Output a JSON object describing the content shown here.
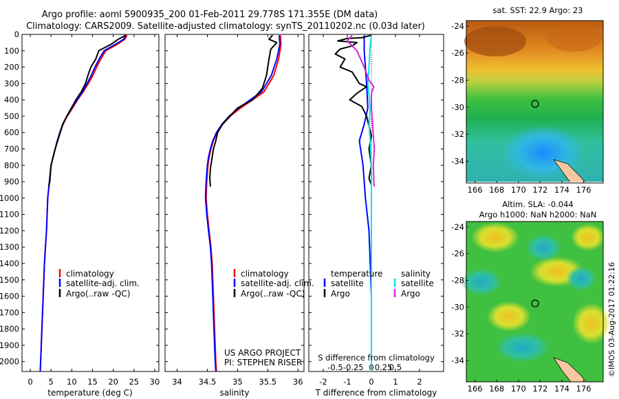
{
  "header": {
    "line1": "Argo profile: aoml 5900935_200 01-Feb-2011 29.778S 171.355E (DM data)",
    "line2": "Climatology: CARS2009. Satellite-adjusted climatology: synTS_20110202.nc (0.03d later)"
  },
  "depth_ticks": [
    "0",
    "100",
    "200",
    "300",
    "400",
    "500",
    "600",
    "700",
    "800",
    "900",
    "1000",
    "1100",
    "1200",
    "1300",
    "1400",
    "1500",
    "1600",
    "1700",
    "1800",
    "1900",
    "2000"
  ],
  "colors": {
    "climatology": "#ff0000",
    "satellite": "#0000ff",
    "argo": "#000000",
    "sat_salinity": "#00e5e5",
    "argo_salinity": "#e020e0"
  },
  "chart_data": [
    {
      "type": "line",
      "id": "temperature",
      "xlabel": "temperature (deg C)",
      "xlim": [
        -2,
        31
      ],
      "ylim": [
        0,
        2060
      ],
      "y_reversed": true,
      "xticks": [
        0,
        5,
        10,
        15,
        20,
        25,
        30
      ],
      "xtick_labels": [
        "0",
        "5",
        "10",
        "15",
        "20",
        "25",
        "30"
      ],
      "legend": [
        "climatology",
        "satellite-adj. clim.",
        "Argo(..raw -QC)"
      ],
      "series": [
        {
          "name": "climatology",
          "color": "#ff0000",
          "points": [
            [
              23.3,
              5
            ],
            [
              22.8,
              30
            ],
            [
              21.0,
              60
            ],
            [
              18.2,
              100
            ],
            [
              17.0,
              150
            ],
            [
              16.0,
              200
            ],
            [
              15.1,
              250
            ],
            [
              14.0,
              300
            ],
            [
              12.8,
              350
            ],
            [
              11.4,
              400
            ],
            [
              10.2,
              450
            ],
            [
              8.9,
              500
            ],
            [
              7.9,
              550
            ],
            [
              7.2,
              600
            ],
            [
              6.5,
              650
            ],
            [
              6.0,
              700
            ],
            [
              5.5,
              750
            ],
            [
              5.0,
              800
            ],
            [
              4.6,
              900
            ],
            [
              4.2,
              1000
            ],
            [
              3.9,
              1200
            ],
            [
              3.4,
              1400
            ],
            [
              3.1,
              1600
            ],
            [
              2.8,
              1800
            ],
            [
              2.5,
              2000
            ],
            [
              2.4,
              2060
            ]
          ]
        },
        {
          "name": "satellite-adj. clim.",
          "color": "#0000ff",
          "points": [
            [
              23.0,
              5
            ],
            [
              22.5,
              30
            ],
            [
              20.5,
              60
            ],
            [
              17.8,
              100
            ],
            [
              16.6,
              150
            ],
            [
              15.6,
              200
            ],
            [
              14.7,
              250
            ],
            [
              13.7,
              300
            ],
            [
              12.6,
              350
            ],
            [
              11.3,
              400
            ],
            [
              10.0,
              450
            ],
            [
              8.8,
              500
            ],
            [
              7.8,
              550
            ],
            [
              7.1,
              600
            ],
            [
              6.5,
              650
            ],
            [
              6.0,
              700
            ],
            [
              5.5,
              750
            ],
            [
              5.0,
              800
            ],
            [
              4.6,
              900
            ],
            [
              4.2,
              1000
            ],
            [
              3.9,
              1200
            ],
            [
              3.4,
              1400
            ],
            [
              3.1,
              1600
            ],
            [
              2.8,
              1800
            ],
            [
              2.5,
              2000
            ],
            [
              2.4,
              2060
            ]
          ]
        },
        {
          "name": "Argo(..raw -QC)",
          "color": "#000000",
          "points": [
            [
              23.0,
              5
            ],
            [
              21.2,
              30
            ],
            [
              19.5,
              60
            ],
            [
              16.5,
              100
            ],
            [
              15.8,
              150
            ],
            [
              14.6,
              200
            ],
            [
              13.9,
              250
            ],
            [
              13.3,
              300
            ],
            [
              12.3,
              350
            ],
            [
              11.0,
              400
            ],
            [
              9.9,
              450
            ],
            [
              8.8,
              500
            ],
            [
              7.8,
              550
            ],
            [
              7.2,
              600
            ],
            [
              6.6,
              650
            ],
            [
              6.0,
              700
            ],
            [
              5.5,
              750
            ],
            [
              5.0,
              800
            ],
            [
              4.7,
              900
            ],
            [
              4.4,
              930
            ]
          ]
        }
      ]
    },
    {
      "type": "line",
      "id": "salinity",
      "xlabel": "salinity",
      "xlim": [
        33.8,
        36.1
      ],
      "ylim": [
        0,
        2060
      ],
      "y_reversed": true,
      "xticks": [
        34,
        34.5,
        35,
        35.5,
        36
      ],
      "xtick_labels": [
        "34",
        "34.5",
        "35",
        "35.5",
        "36"
      ],
      "legend": [
        "climatology",
        "satellite-adj. clim.",
        "Argo(..raw -QC)"
      ],
      "credit": [
        "US ARGO PROJECT",
        "PI: STEPHEN RISER"
      ],
      "series": [
        {
          "name": "climatology",
          "color": "#ff0000",
          "points": [
            [
              35.71,
              5
            ],
            [
              35.72,
              60
            ],
            [
              35.68,
              150
            ],
            [
              35.6,
              250
            ],
            [
              35.44,
              350
            ],
            [
              35.25,
              400
            ],
            [
              35.05,
              450
            ],
            [
              34.88,
              500
            ],
            [
              34.75,
              550
            ],
            [
              34.66,
              600
            ],
            [
              34.6,
              650
            ],
            [
              34.56,
              700
            ],
            [
              34.53,
              750
            ],
            [
              34.51,
              800
            ],
            [
              34.49,
              900
            ],
            [
              34.48,
              1000
            ],
            [
              34.5,
              1100
            ],
            [
              34.53,
              1200
            ],
            [
              34.56,
              1300
            ],
            [
              34.58,
              1400
            ],
            [
              34.6,
              1600
            ],
            [
              34.62,
              1800
            ],
            [
              34.64,
              2000
            ],
            [
              34.65,
              2060
            ]
          ]
        },
        {
          "name": "satellite-adj. clim.",
          "color": "#0000ff",
          "points": [
            [
              35.69,
              5
            ],
            [
              35.7,
              60
            ],
            [
              35.65,
              150
            ],
            [
              35.56,
              250
            ],
            [
              35.4,
              350
            ],
            [
              35.21,
              400
            ],
            [
              35.02,
              450
            ],
            [
              34.86,
              500
            ],
            [
              34.74,
              550
            ],
            [
              34.65,
              600
            ],
            [
              34.59,
              650
            ],
            [
              34.55,
              700
            ],
            [
              34.52,
              750
            ],
            [
              34.5,
              800
            ],
            [
              34.48,
              900
            ],
            [
              34.47,
              1000
            ],
            [
              34.49,
              1100
            ],
            [
              34.52,
              1200
            ],
            [
              34.55,
              1300
            ],
            [
              34.57,
              1400
            ],
            [
              34.59,
              1600
            ],
            [
              34.61,
              1800
            ],
            [
              34.63,
              2000
            ],
            [
              34.64,
              2060
            ]
          ]
        },
        {
          "name": "Argo(..raw -QC)",
          "color": "#000000",
          "points": [
            [
              35.58,
              5
            ],
            [
              35.52,
              30
            ],
            [
              35.65,
              50
            ],
            [
              35.55,
              90
            ],
            [
              35.52,
              150
            ],
            [
              35.48,
              250
            ],
            [
              35.41,
              330
            ],
            [
              35.25,
              400
            ],
            [
              35.0,
              450
            ],
            [
              34.87,
              500
            ],
            [
              34.75,
              550
            ],
            [
              34.67,
              600
            ],
            [
              34.64,
              650
            ],
            [
              34.6,
              700
            ],
            [
              34.58,
              750
            ],
            [
              34.55,
              820
            ],
            [
              34.54,
              880
            ],
            [
              34.55,
              930
            ]
          ]
        }
      ]
    },
    {
      "type": "line",
      "id": "difference",
      "xlabel": "T difference from climatology",
      "xlabel_top": "S difference from climatology",
      "xlim": [
        -2.6,
        3.0
      ],
      "ylim": [
        0,
        2060
      ],
      "y_reversed": true,
      "xticks": [
        -2,
        -1,
        0,
        1,
        2
      ],
      "xtick_labels": [
        "-2",
        "-1",
        "0",
        "1",
        "2"
      ],
      "xticks_top_positions": [
        -1.5,
        -0.75,
        0,
        0.5,
        1.0
      ],
      "xtick_labels_top": [
        "-0.5",
        "-0.25",
        "0",
        "0.25",
        "0.5"
      ],
      "legend_temperature": {
        "title": "temperature",
        "items": [
          "satellite",
          "Argo"
        ]
      },
      "legend_salinity": {
        "title": "salinity",
        "items": [
          "satellite",
          "Argo"
        ]
      },
      "series": [
        {
          "name": "T satellite",
          "color": "#0000ff",
          "points": [
            [
              -0.3,
              5
            ],
            [
              -0.3,
              100
            ],
            [
              -0.2,
              300
            ],
            [
              -0.15,
              450
            ],
            [
              -0.3,
              550
            ],
            [
              -0.5,
              650
            ],
            [
              -0.35,
              800
            ],
            [
              -0.25,
              1000
            ],
            [
              -0.1,
              1200
            ],
            [
              -0.05,
              1400
            ],
            [
              0,
              1600
            ],
            [
              0,
              1750
            ]
          ]
        },
        {
          "name": "T Argo",
          "color": "#000000",
          "points": [
            [
              0,
              5
            ],
            [
              -0.4,
              20
            ],
            [
              -1.0,
              25
            ],
            [
              -1.4,
              40
            ],
            [
              -0.6,
              50
            ],
            [
              -0.8,
              70
            ],
            [
              -1.3,
              90
            ],
            [
              -1.5,
              120
            ],
            [
              -1.1,
              150
            ],
            [
              -1.3,
              200
            ],
            [
              -0.8,
              230
            ],
            [
              -0.5,
              300
            ],
            [
              -0.2,
              320
            ],
            [
              -0.6,
              360
            ],
            [
              -0.9,
              400
            ],
            [
              -0.4,
              440
            ],
            [
              -0.2,
              500
            ],
            [
              -0.1,
              560
            ],
            [
              0,
              620
            ],
            [
              -0.1,
              700
            ],
            [
              0,
              800
            ],
            [
              -0.1,
              880
            ],
            [
              0,
              920
            ]
          ]
        },
        {
          "name": "S satellite",
          "color": "#00e5e5",
          "points": [
            [
              0,
              5
            ],
            [
              -0.05,
              60
            ],
            [
              -0.1,
              200
            ],
            [
              -0.15,
              300
            ],
            [
              -0.05,
              450
            ],
            [
              -0.1,
              550
            ],
            [
              -0.05,
              650
            ],
            [
              0,
              800
            ],
            [
              0,
              1000
            ],
            [
              0,
              1500
            ],
            [
              0,
              2000
            ],
            [
              0,
              2060
            ]
          ]
        },
        {
          "name": "S Argo",
          "color": "#e020e0",
          "points": [
            [
              -0.8,
              5
            ],
            [
              -1.0,
              40
            ],
            [
              -0.6,
              100
            ],
            [
              -0.3,
              200
            ],
            [
              -0.1,
              280
            ],
            [
              0.1,
              320
            ],
            [
              0,
              360
            ],
            [
              0,
              450
            ],
            [
              0.05,
              550
            ],
            [
              0.08,
              620
            ],
            [
              0.12,
              700
            ],
            [
              0.08,
              800
            ],
            [
              0.1,
              900
            ],
            [
              0.12,
              930
            ]
          ]
        }
      ]
    }
  ],
  "maps": {
    "sst": {
      "title": "sat. SST: 22.9 Argo: 23",
      "lon_ticks": [
        "166",
        "168",
        "170",
        "172",
        "174",
        "176"
      ],
      "lat_ticks": [
        "-24",
        "-26",
        "-28",
        "-30",
        "-32",
        "-34"
      ]
    },
    "sla": {
      "title1": "Altim. SLA: -0.044",
      "title2": "Argo h1000: NaN h2000: NaN",
      "lon_ticks": [
        "166",
        "168",
        "170",
        "172",
        "174",
        "176"
      ],
      "lat_ticks": [
        "-24",
        "-26",
        "-28",
        "-30",
        "-32",
        "-34"
      ]
    },
    "credit": "©IMOS 03-Aug-2017 01:22:16"
  }
}
